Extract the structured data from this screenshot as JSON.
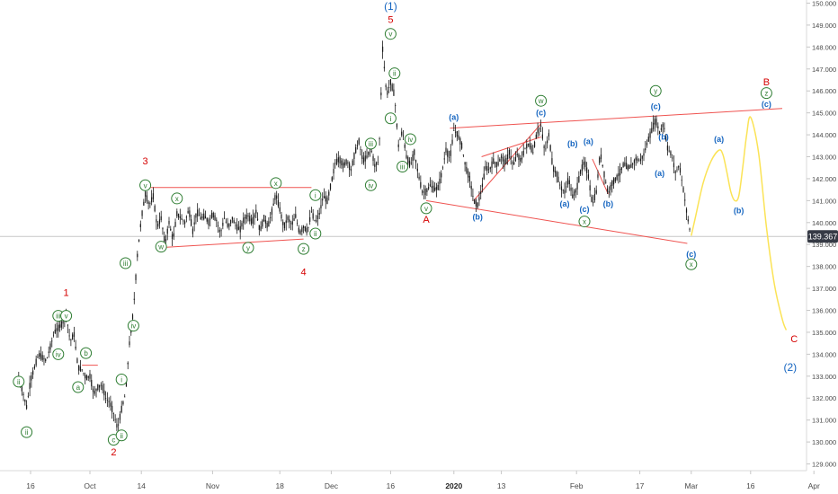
{
  "chart_data": {
    "type": "candlestick-elliott-wave",
    "instrument_price_label": "139.367",
    "y_axis": {
      "min": 129.0,
      "max": 150.0,
      "ticks": [
        "129.000",
        "130.000",
        "131.000",
        "132.000",
        "133.000",
        "134.000",
        "135.000",
        "136.000",
        "137.000",
        "138.000",
        "139.000",
        "140.000",
        "141.000",
        "142.000",
        "143.000",
        "144.000",
        "145.000",
        "146.000",
        "147.000",
        "148.000",
        "149.000",
        "150.000"
      ]
    },
    "x_axis": {
      "ticks": [
        {
          "label": "16",
          "day": 0
        },
        {
          "label": "Oct",
          "day": 15
        },
        {
          "label": "14",
          "day": 28
        },
        {
          "label": "Nov",
          "day": 46
        },
        {
          "label": "18",
          "day": 63
        },
        {
          "label": "Dec",
          "day": 76
        },
        {
          "label": "16",
          "day": 91
        },
        {
          "label": "2020",
          "day": 107
        },
        {
          "label": "13",
          "day": 119
        },
        {
          "label": "Feb",
          "day": 138
        },
        {
          "label": "17",
          "day": 154
        },
        {
          "label": "Mar",
          "day": 167
        },
        {
          "label": "16",
          "day": 182
        },
        {
          "label": "Apr",
          "day": 198
        }
      ],
      "bold_label": "2020"
    },
    "price_path": [
      [
        -3,
        133.0
      ],
      [
        -1,
        131.6
      ],
      [
        0,
        132.8
      ],
      [
        2,
        134.0
      ],
      [
        4,
        133.7
      ],
      [
        6,
        135.0
      ],
      [
        8,
        135.4
      ],
      [
        9,
        135.8
      ],
      [
        10,
        134.6
      ],
      [
        11,
        134.9
      ],
      [
        12,
        133.4
      ],
      [
        13,
        133.3
      ],
      [
        14,
        132.9
      ],
      [
        15,
        133.0
      ],
      [
        16,
        132.2
      ],
      [
        17,
        132.5
      ],
      [
        18,
        132.6
      ],
      [
        19,
        132.0
      ],
      [
        20,
        131.8
      ],
      [
        21,
        131.3
      ],
      [
        22,
        130.6
      ],
      [
        23,
        131.5
      ],
      [
        24,
        132.2
      ],
      [
        25,
        134.5
      ],
      [
        26,
        136.0
      ],
      [
        27,
        138.5
      ],
      [
        28,
        140.2
      ],
      [
        29,
        141.3
      ],
      [
        30,
        140.8
      ],
      [
        31,
        141.2
      ],
      [
        32,
        139.8
      ],
      [
        33,
        140.2
      ],
      [
        34,
        139.0
      ],
      [
        35,
        140.0
      ],
      [
        36,
        139.2
      ],
      [
        37,
        140.4
      ],
      [
        38,
        140.2
      ],
      [
        39,
        140.0
      ],
      [
        40,
        140.6
      ],
      [
        41,
        139.6
      ],
      [
        42,
        140.5
      ],
      [
        43,
        140.2
      ],
      [
        44,
        140.3
      ],
      [
        45,
        140.0
      ],
      [
        46,
        140.4
      ],
      [
        47,
        140.1
      ],
      [
        48,
        139.5
      ],
      [
        49,
        140.2
      ],
      [
        50,
        139.8
      ],
      [
        51,
        140.2
      ],
      [
        52,
        139.8
      ],
      [
        53,
        139.7
      ],
      [
        54,
        140.2
      ],
      [
        55,
        140.3
      ],
      [
        56,
        140.0
      ],
      [
        57,
        140.5
      ],
      [
        58,
        139.6
      ],
      [
        59,
        140.2
      ],
      [
        60,
        139.8
      ],
      [
        61,
        140.5
      ],
      [
        62,
        141.3
      ],
      [
        63,
        140.6
      ],
      [
        64,
        139.8
      ],
      [
        65,
        140.2
      ],
      [
        66,
        139.9
      ],
      [
        67,
        140.3
      ],
      [
        68,
        139.5
      ],
      [
        69,
        139.8
      ],
      [
        70,
        139.6
      ],
      [
        71,
        140.5
      ],
      [
        72,
        140.0
      ],
      [
        73,
        140.4
      ],
      [
        74,
        141.2
      ],
      [
        75,
        141.0
      ],
      [
        76,
        141.8
      ],
      [
        77,
        142.7
      ],
      [
        78,
        142.9
      ],
      [
        79,
        142.6
      ],
      [
        80,
        142.8
      ],
      [
        81,
        142.4
      ],
      [
        82,
        143.2
      ],
      [
        83,
        143.7
      ],
      [
        84,
        142.8
      ],
      [
        85,
        143.0
      ],
      [
        86,
        143.4
      ],
      [
        87,
        142.6
      ],
      [
        88,
        142.8
      ],
      [
        89,
        147.9
      ],
      [
        90,
        145.8
      ],
      [
        91,
        146.4
      ],
      [
        92,
        145.8
      ],
      [
        93,
        143.5
      ],
      [
        94,
        144.2
      ],
      [
        95,
        143.0
      ],
      [
        96,
        142.6
      ],
      [
        97,
        143.2
      ],
      [
        98,
        142.2
      ],
      [
        99,
        141.4
      ],
      [
        100,
        141.4
      ],
      [
        101,
        141.7
      ],
      [
        102,
        141.5
      ],
      [
        103,
        141.6
      ],
      [
        104,
        142.3
      ],
      [
        105,
        143.3
      ],
      [
        106,
        142.9
      ],
      [
        107,
        144.2
      ],
      [
        108,
        144.0
      ],
      [
        109,
        143.5
      ],
      [
        110,
        142.5
      ],
      [
        111,
        142.0
      ],
      [
        112,
        141.0
      ],
      [
        113,
        140.8
      ],
      [
        114,
        141.5
      ],
      [
        115,
        142.5
      ],
      [
        116,
        142.4
      ],
      [
        117,
        142.8
      ],
      [
        118,
        142.6
      ],
      [
        119,
        143.0
      ],
      [
        120,
        142.7
      ],
      [
        121,
        143.2
      ],
      [
        122,
        142.6
      ],
      [
        123,
        143.1
      ],
      [
        124,
        142.8
      ],
      [
        125,
        143.4
      ],
      [
        126,
        143.6
      ],
      [
        127,
        143.2
      ],
      [
        128,
        144.1
      ],
      [
        129,
        144.4
      ],
      [
        130,
        143.2
      ],
      [
        131,
        144.0
      ],
      [
        132,
        142.5
      ],
      [
        133,
        142.2
      ],
      [
        134,
        141.6
      ],
      [
        135,
        141.4
      ],
      [
        136,
        142.0
      ],
      [
        137,
        141.2
      ],
      [
        138,
        141.5
      ],
      [
        139,
        142.3
      ],
      [
        140,
        142.8
      ],
      [
        141,
        142.1
      ],
      [
        142,
        140.8
      ],
      [
        143,
        141.4
      ],
      [
        144,
        143.2
      ],
      [
        145,
        142.2
      ],
      [
        146,
        141.3
      ],
      [
        147,
        141.8
      ],
      [
        148,
        142.0
      ],
      [
        149,
        142.3
      ],
      [
        150,
        142.7
      ],
      [
        151,
        142.5
      ],
      [
        152,
        142.6
      ],
      [
        153,
        142.9
      ],
      [
        154,
        142.8
      ],
      [
        155,
        143.1
      ],
      [
        156,
        143.7
      ],
      [
        157,
        144.2
      ],
      [
        158,
        144.7
      ],
      [
        159,
        144.1
      ],
      [
        160,
        144.5
      ],
      [
        161,
        143.4
      ],
      [
        162,
        143.1
      ],
      [
        163,
        142.3
      ],
      [
        164,
        142.6
      ],
      [
        165,
        141.5
      ],
      [
        166,
        140.3
      ],
      [
        167,
        139.3
      ]
    ],
    "projection_path": [
      [
        167,
        139.4
      ],
      [
        168,
        140.2
      ],
      [
        170,
        141.8
      ],
      [
        172,
        142.8
      ],
      [
        174,
        143.3
      ],
      [
        175,
        143.1
      ],
      [
        176,
        142.3
      ],
      [
        177,
        141.4
      ],
      [
        178,
        141.0
      ],
      [
        179,
        141.2
      ],
      [
        180,
        142.5
      ],
      [
        181,
        144.0
      ],
      [
        182,
        144.8
      ],
      [
        184,
        143.2
      ],
      [
        186,
        139.8
      ],
      [
        188,
        137.2
      ],
      [
        190,
        135.6
      ],
      [
        191,
        135.1
      ]
    ],
    "trendlines": [
      {
        "from": [
          30,
          141.6
        ],
        "to": [
          71,
          141.6
        ]
      },
      {
        "from": [
          32,
          138.85
        ],
        "to": [
          69,
          139.25
        ]
      },
      {
        "from": [
          106,
          144.3
        ],
        "to": [
          190,
          145.2
        ]
      },
      {
        "from": [
          100,
          141.0
        ],
        "to": [
          166,
          139.05
        ]
      },
      {
        "from": [
          112,
          141.0
        ],
        "to": [
          129,
          144.5
        ]
      },
      {
        "from": [
          114,
          143.0
        ],
        "to": [
          129,
          143.9
        ]
      },
      {
        "from": [
          142,
          142.9
        ],
        "to": [
          146,
          141.3
        ]
      },
      {
        "from": [
          13,
          133.5
        ],
        "to": [
          17,
          133.5
        ]
      }
    ],
    "labels": [
      {
        "text": "(1)",
        "day": 91,
        "price": 149.85,
        "style": "blue-paren"
      },
      {
        "text": "5",
        "day": 91,
        "price": 149.25,
        "style": "red"
      },
      {
        "text": "v",
        "day": 91,
        "price": 148.6,
        "style": "circled"
      },
      {
        "text": "ii",
        "day": 92,
        "price": 146.8,
        "style": "circled"
      },
      {
        "text": "i",
        "day": 91,
        "price": 144.75,
        "style": "circled"
      },
      {
        "text": "iii",
        "day": 86,
        "price": 143.6,
        "style": "circled"
      },
      {
        "text": "iv",
        "day": 96,
        "price": 143.8,
        "style": "circled"
      },
      {
        "text": "iii",
        "day": 94,
        "price": 142.55,
        "style": "circled"
      },
      {
        "text": "iv",
        "day": 86,
        "price": 141.7,
        "style": "circled"
      },
      {
        "text": "v",
        "day": 100,
        "price": 140.65,
        "style": "circled"
      },
      {
        "text": "A",
        "day": 100,
        "price": 140.15,
        "style": "red"
      },
      {
        "text": "3",
        "day": 29,
        "price": 142.8,
        "style": "red"
      },
      {
        "text": "v",
        "day": 29,
        "price": 141.7,
        "style": "circled"
      },
      {
        "text": "x",
        "day": 37,
        "price": 141.1,
        "style": "circled"
      },
      {
        "text": "x",
        "day": 62,
        "price": 141.8,
        "style": "circled"
      },
      {
        "text": "i",
        "day": 72,
        "price": 141.25,
        "style": "circled"
      },
      {
        "text": "ii",
        "day": 72,
        "price": 139.5,
        "style": "circled"
      },
      {
        "text": "w",
        "day": 33,
        "price": 138.9,
        "style": "circled"
      },
      {
        "text": "y",
        "day": 55,
        "price": 138.85,
        "style": "circled"
      },
      {
        "text": "z",
        "day": 69,
        "price": 138.8,
        "style": "circled"
      },
      {
        "text": "4",
        "day": 69,
        "price": 137.75,
        "style": "red"
      },
      {
        "text": "iii",
        "day": 24,
        "price": 138.15,
        "style": "circled"
      },
      {
        "text": "iv",
        "day": 26,
        "price": 135.3,
        "style": "circled"
      },
      {
        "text": "1",
        "day": 9,
        "price": 136.8,
        "style": "red"
      },
      {
        "text": "iii",
        "day": 7,
        "price": 135.75,
        "style": "circled"
      },
      {
        "text": "v",
        "day": 9,
        "price": 135.75,
        "style": "circled"
      },
      {
        "text": "iv",
        "day": 7,
        "price": 134.0,
        "style": "circled"
      },
      {
        "text": "b",
        "day": 14,
        "price": 134.05,
        "style": "circled"
      },
      {
        "text": "a",
        "day": 12,
        "price": 132.5,
        "style": "circled"
      },
      {
        "text": "i",
        "day": 23,
        "price": 132.85,
        "style": "circled"
      },
      {
        "text": "ii",
        "day": -3,
        "price": 132.75,
        "style": "circled"
      },
      {
        "text": "ii",
        "day": -1,
        "price": 130.45,
        "style": "circled"
      },
      {
        "text": "c",
        "day": 21,
        "price": 130.1,
        "style": "circled"
      },
      {
        "text": "ii",
        "day": 23,
        "price": 130.3,
        "style": "circled"
      },
      {
        "text": "2",
        "day": 21,
        "price": 129.55,
        "style": "red"
      },
      {
        "text": "(a)",
        "day": 107,
        "price": 144.8,
        "style": "blue"
      },
      {
        "text": "(b)",
        "day": 113,
        "price": 140.25,
        "style": "blue"
      },
      {
        "text": "w",
        "day": 129,
        "price": 145.55,
        "style": "circled"
      },
      {
        "text": "(c)",
        "day": 129,
        "price": 145.0,
        "style": "blue"
      },
      {
        "text": "(b)",
        "day": 137,
        "price": 143.6,
        "style": "blue"
      },
      {
        "text": "(a)",
        "day": 141,
        "price": 143.7,
        "style": "blue"
      },
      {
        "text": "(a)",
        "day": 135,
        "price": 140.85,
        "style": "blue"
      },
      {
        "text": "(c)",
        "day": 140,
        "price": 140.6,
        "style": "blue"
      },
      {
        "text": "x",
        "day": 140,
        "price": 140.05,
        "style": "circled"
      },
      {
        "text": "(b)",
        "day": 146,
        "price": 140.85,
        "style": "blue"
      },
      {
        "text": "y",
        "day": 158,
        "price": 146.0,
        "style": "circled"
      },
      {
        "text": "(c)",
        "day": 158,
        "price": 145.3,
        "style": "blue"
      },
      {
        "text": "(b)",
        "day": 160,
        "price": 143.9,
        "style": "blue"
      },
      {
        "text": "(a)",
        "day": 159,
        "price": 142.25,
        "style": "blue"
      },
      {
        "text": "(c)",
        "day": 167,
        "price": 138.55,
        "style": "blue"
      },
      {
        "text": "x",
        "day": 167,
        "price": 138.1,
        "style": "circled"
      },
      {
        "text": "(a)",
        "day": 174,
        "price": 143.8,
        "style": "blue"
      },
      {
        "text": "(b)",
        "day": 179,
        "price": 140.55,
        "style": "blue"
      },
      {
        "text": "B",
        "day": 186,
        "price": 146.4,
        "style": "red"
      },
      {
        "text": "z",
        "day": 186,
        "price": 145.9,
        "style": "circled"
      },
      {
        "text": "(c)",
        "day": 186,
        "price": 145.4,
        "style": "blue"
      },
      {
        "text": "C",
        "day": 193,
        "price": 134.7,
        "style": "red"
      },
      {
        "text": "(2)",
        "day": 192,
        "price": 133.4,
        "style": "blue-paren"
      }
    ],
    "colors": {
      "candle": "#1a1a1a",
      "trendline": "#ef5350",
      "projection": "#fbe356",
      "wave_red": "#d50000",
      "wave_blue": "#1565c0",
      "circled_green": "#2e7d32",
      "axis_text": "#4a4a4a",
      "price_tag_bg": "#363a45"
    }
  }
}
